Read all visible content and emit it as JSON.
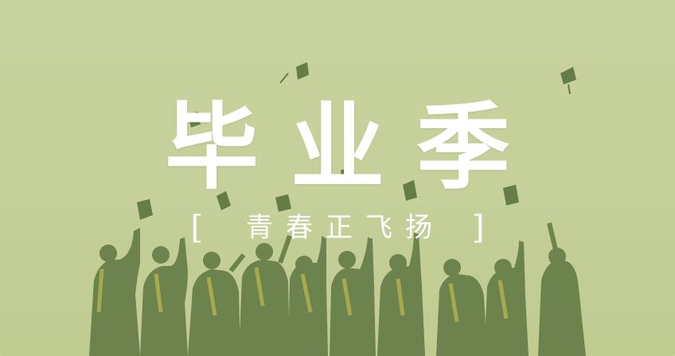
{
  "banner": {
    "title": "毕业季",
    "subtitle": "青春正飞扬",
    "bracket_open": "[",
    "bracket_close": "]"
  },
  "colors": {
    "background": "#c9d4a0",
    "overlay_tint": "#c2cf94",
    "figure_dark": "#3f5a26",
    "text": "#ffffff"
  },
  "scene": "graduates-throwing-caps"
}
